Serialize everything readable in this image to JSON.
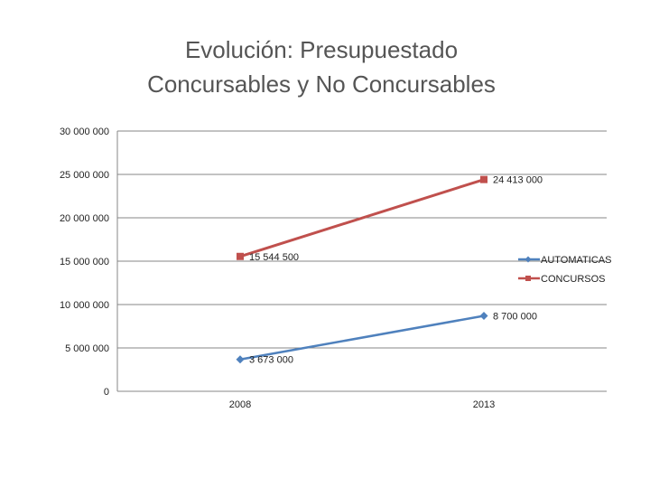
{
  "chart_data": {
    "type": "line",
    "title_lines": [
      "Evolución: Presupuestado",
      "Concursables y No Concursables"
    ],
    "categories": [
      "2008",
      "2013"
    ],
    "y_ticks": [
      0,
      5000000,
      10000000,
      15000000,
      20000000,
      25000000,
      30000000
    ],
    "y_tick_labels": [
      "0",
      "5 000 000",
      "10 000 000",
      "15 000 000",
      "20 000 000",
      "25 000 000",
      "30 000 000"
    ],
    "ylim": [
      0,
      30000000
    ],
    "grid": true,
    "legend_position": "right",
    "series": [
      {
        "name": "AUTOMATICAS",
        "color": "#4f81bd",
        "marker": "diamond",
        "values": [
          3673000,
          8700000
        ],
        "data_labels": [
          "3 673 000",
          "8 700 000"
        ]
      },
      {
        "name": "CONCURSOS",
        "color": "#c0504d",
        "marker": "square",
        "values": [
          15544500,
          24413000
        ],
        "data_labels": [
          "15 544 500",
          "24 413 000"
        ]
      }
    ]
  }
}
